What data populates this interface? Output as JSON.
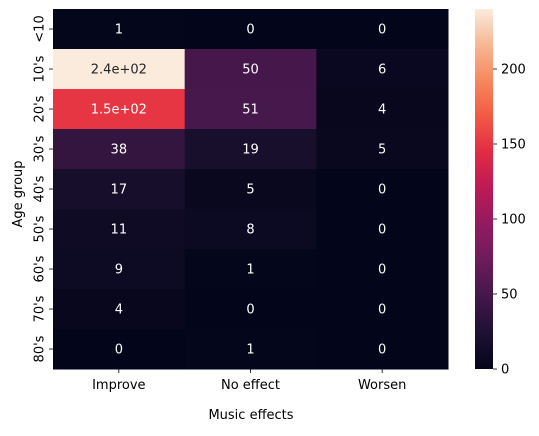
{
  "chart_data": {
    "type": "heatmap",
    "title": "",
    "xlabel": "Music effects",
    "ylabel": "Age group",
    "x_categories": [
      "Improve",
      "No effect",
      "Worsen"
    ],
    "y_categories": [
      "<10",
      "10's",
      "20's",
      "30's",
      "40's",
      "50's",
      "60's",
      "70's",
      "80's"
    ],
    "values": [
      [
        1,
        0,
        0
      ],
      [
        240,
        50,
        6
      ],
      [
        150,
        51,
        4
      ],
      [
        38,
        19,
        5
      ],
      [
        17,
        5,
        0
      ],
      [
        11,
        8,
        0
      ],
      [
        9,
        1,
        0
      ],
      [
        4,
        0,
        0
      ],
      [
        0,
        1,
        0
      ]
    ],
    "cell_labels": [
      [
        "1",
        "0",
        "0"
      ],
      [
        "2.4e+02",
        "50",
        "6"
      ],
      [
        "1.5e+02",
        "51",
        "4"
      ],
      [
        "38",
        "19",
        "5"
      ],
      [
        "17",
        "5",
        "0"
      ],
      [
        "11",
        "8",
        "0"
      ],
      [
        "9",
        "1",
        "0"
      ],
      [
        "4",
        "0",
        "0"
      ],
      [
        "0",
        "1",
        "0"
      ]
    ],
    "colorbar": {
      "range": [
        0,
        240
      ],
      "ticks": [
        0,
        50,
        100,
        150,
        200
      ],
      "tick_labels": [
        "0",
        "50",
        "100",
        "150",
        "200"
      ],
      "colormap": "rocket",
      "position": "right"
    }
  }
}
